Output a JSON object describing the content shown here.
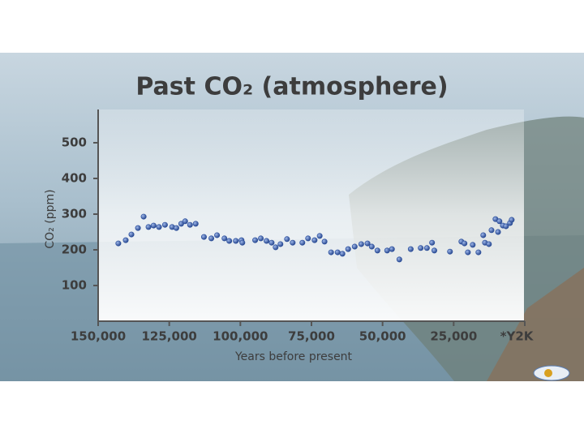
{
  "chart_data": {
    "type": "scatter",
    "title": "Past CO₂ (atmosphere)",
    "xlabel": "Years before present",
    "ylabel": "CO₂ (ppm)",
    "color": "#2b4f9c",
    "xlim": [
      150000,
      0
    ],
    "ylim": [
      0,
      600
    ],
    "xticks": [
      {
        "value": 150000,
        "label": "150,000"
      },
      {
        "value": 125000,
        "label": "125,000"
      },
      {
        "value": 100000,
        "label": "100,000"
      },
      {
        "value": 75000,
        "label": "75,000"
      },
      {
        "value": 50000,
        "label": "50,000"
      },
      {
        "value": 25000,
        "label": "25,000"
      },
      {
        "value": 0,
        "label": "*Y2K"
      }
    ],
    "yticks": [
      100,
      200,
      300,
      400,
      500
    ],
    "x": [
      142900,
      140300,
      138300,
      136000,
      134000,
      132300,
      130500,
      128600,
      126500,
      124000,
      122500,
      120800,
      119400,
      117700,
      115700,
      112800,
      110200,
      108200,
      105600,
      103900,
      101600,
      99600,
      99300,
      94800,
      92800,
      90800,
      89000,
      87600,
      85900,
      83600,
      81600,
      78200,
      76200,
      73900,
      72100,
      70400,
      68100,
      65800,
      64100,
      62100,
      59800,
      57500,
      55300,
      53800,
      51800,
      48400,
      46700,
      44100,
      40100,
      36600,
      34400,
      32600,
      31800,
      26300,
      22300,
      21200,
      20000,
      18300,
      16300,
      14600,
      14000,
      12600,
      11700,
      10300,
      9400,
      8900,
      7700,
      6600,
      5200,
      4600
    ],
    "values": [
      218,
      227,
      243,
      261,
      293,
      264,
      268,
      264,
      270,
      264,
      261,
      273,
      280,
      270,
      273,
      236,
      232,
      241,
      232,
      225,
      225,
      227,
      220,
      227,
      232,
      225,
      220,
      207,
      216,
      230,
      220,
      220,
      232,
      227,
      239,
      223,
      193,
      193,
      189,
      202,
      209,
      216,
      218,
      209,
      198,
      198,
      202,
      173,
      202,
      205,
      205,
      220,
      198,
      195,
      223,
      218,
      193,
      214,
      193,
      241,
      220,
      216,
      255,
      286,
      250,
      280,
      268,
      266,
      275,
      284
    ]
  }
}
